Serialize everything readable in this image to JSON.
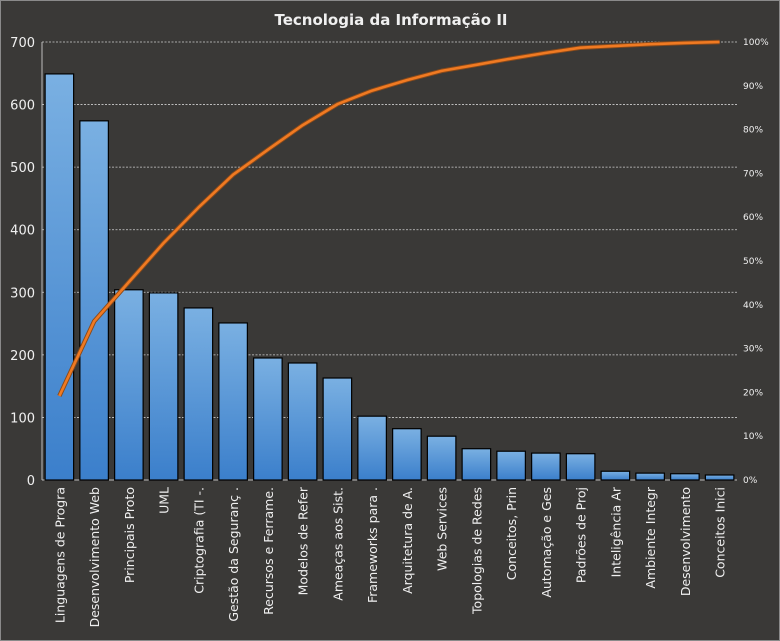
{
  "chart_data": {
    "type": "bar",
    "title": "Tecnologia da Informação II",
    "categories": [
      "Linguagens de Progra",
      "Desenvolvimento Web",
      "Principais Proto",
      "UML",
      "Criptografia (TI -.",
      "Gestão da Seguranç .",
      "Recursos e Ferrame.",
      "Modelos de Refer",
      "Ameaças aos Sist.",
      "Frameworks para .",
      "Arquitetura de A.",
      "Web Services",
      "Topologias de Redes",
      "Conceitos, Prin",
      "Automação e Ges",
      "Padrões de Proj",
      "Inteligência Ar",
      "Ambiente Integr",
      "Desenvolvimento",
      "Conceitos Inici"
    ],
    "series": [
      {
        "type": "bar",
        "values": [
          649,
          574,
          304,
          299,
          275,
          251,
          195,
          187,
          163,
          102,
          82,
          70,
          50,
          46,
          43,
          42,
          14,
          11,
          10,
          8
        ]
      },
      {
        "type": "line",
        "axis": "right",
        "cumulative_percent": [
          19.2,
          36.2,
          45.2,
          54.1,
          62.2,
          69.7,
          75.4,
          81.0,
          85.8,
          88.9,
          91.3,
          93.4,
          94.8,
          96.2,
          97.5,
          98.7,
          99.1,
          99.5,
          99.8,
          100
        ]
      }
    ],
    "ylim": [
      0,
      700
    ],
    "yticks": [
      "0",
      "100",
      "200",
      "300",
      "400",
      "500",
      "600",
      "700"
    ],
    "y2lim": [
      0,
      100
    ],
    "y2ticks": [
      "0%",
      "10%",
      "20%",
      "30%",
      "40%",
      "50%",
      "60%",
      "70%",
      "80%",
      "90%",
      "100%"
    ],
    "grid": true,
    "legend": "none",
    "colors": {
      "background": "#3a3937",
      "bar_light": "#7ab0e2",
      "bar_dark": "#3b7fcb",
      "line": "#f07a22",
      "text": "#f0f0f0"
    }
  }
}
